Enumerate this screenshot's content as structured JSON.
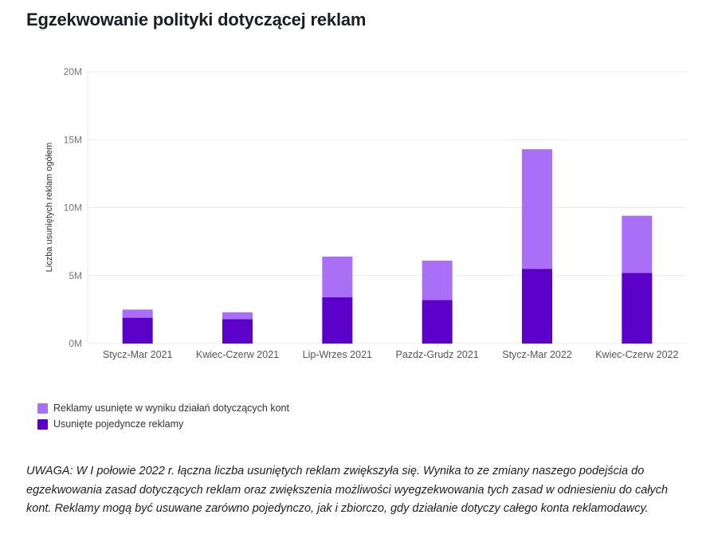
{
  "page": {
    "title": "Egzekwowanie polityki dotyczącej reklam",
    "note": "UWAGA: W I połowie 2022 r. łączna liczba usuniętych reklam zwiększyła się. Wynika to ze zmiany naszego podejścia do egzekwowania zasad dotyczących reklam oraz zwiększenia możliwości wyegzekwowania tych zasad w odniesieniu do całych kont. Reklamy mogą być usuwane zarówno pojedynczo, jak i zbiorczo, gdy działanie dotyczy całego konta reklamodawcy."
  },
  "chart_data": {
    "type": "bar",
    "stacked": true,
    "title": "Egzekwowanie polityki dotyczącej reklam",
    "xlabel": "",
    "ylabel": "Liczba usuniętych reklam ogółem",
    "ylim": [
      0,
      20000000
    ],
    "yticks": [
      {
        "value": 0,
        "label": "0M"
      },
      {
        "value": 5000000,
        "label": "5M"
      },
      {
        "value": 10000000,
        "label": "10M"
      },
      {
        "value": 15000000,
        "label": "15M"
      },
      {
        "value": 20000000,
        "label": "20M"
      }
    ],
    "categories": [
      "Stycz-Mar 2021",
      "Kwiec-Czerw 2021",
      "Lip-Wrzes 2021",
      "Pazdz-Grudz 2021",
      "Stycz-Mar 2022",
      "Kwiec-Czerw 2022"
    ],
    "series": [
      {
        "name": "Usunięte pojedyncze reklamy",
        "color": "#5a00c8",
        "values": [
          1900000,
          1800000,
          3400000,
          3200000,
          5500000,
          5200000
        ]
      },
      {
        "name": "Reklamy usunięte w wyniku działań dotyczących kont",
        "color": "#a96ff7",
        "values": [
          600000,
          500000,
          3000000,
          2900000,
          8800000,
          4200000
        ]
      }
    ],
    "legend": "bottom-left"
  }
}
